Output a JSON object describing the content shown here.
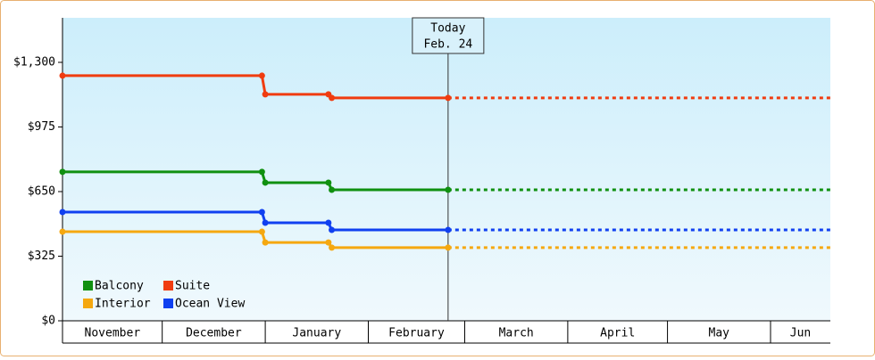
{
  "chart_data": {
    "type": "line",
    "x": [
      0,
      60,
      61,
      80,
      81,
      116
    ],
    "xlim": [
      0,
      231
    ],
    "xticks": [
      0,
      30,
      61,
      92,
      121,
      152,
      182,
      213
    ],
    "categories": [
      "November",
      "December",
      "January",
      "February",
      "March",
      "April",
      "May",
      "Jun"
    ],
    "ylim": [
      0,
      1524
    ],
    "yticks": [
      {
        "value": 0,
        "label": "$0"
      },
      {
        "value": 325,
        "label": "$325"
      },
      {
        "value": 650,
        "label": "$650"
      },
      {
        "value": 975,
        "label": "$975"
      },
      {
        "value": 1300,
        "label": "$1,300"
      }
    ],
    "today": {
      "x": 116,
      "label": [
        "Today",
        "Feb. 24"
      ]
    },
    "legend": "bottom-left",
    "series": [
      {
        "name": "Balcony",
        "color": "#109010",
        "values": [
          749,
          749,
          695,
          695,
          659,
          659
        ]
      },
      {
        "name": "Suite",
        "color": "#f03c10",
        "values": [
          1233,
          1233,
          1139,
          1139,
          1121,
          1121
        ]
      },
      {
        "name": "Interior",
        "color": "#f5a810",
        "values": [
          448,
          448,
          394,
          394,
          368,
          368
        ]
      },
      {
        "name": "Ocean View",
        "color": "#1040f0",
        "values": [
          547,
          547,
          493,
          493,
          457,
          457
        ]
      }
    ]
  }
}
